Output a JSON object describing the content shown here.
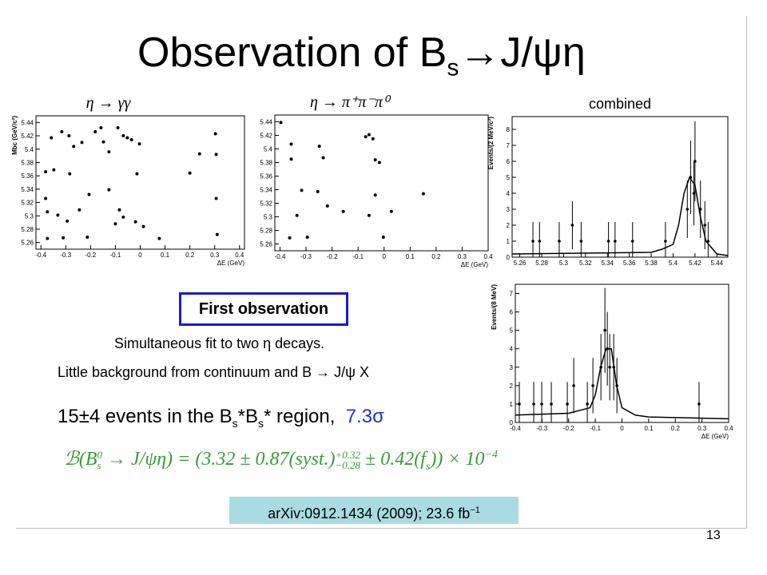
{
  "title": {
    "main": "Observation of B",
    "sub": "s",
    "rest": "→J/ψη"
  },
  "box_text": "First observation",
  "line1": "Simultaneous fit to two η decays.",
  "line2": "Little background from continuum and B → J/ψ X",
  "events": {
    "a": "15±4 events in the B",
    "s1": "s",
    "b": "*B",
    "s2": "s",
    "c": "* region,",
    "sig": "7.3σ"
  },
  "formula": {
    "a": "ℬ(B",
    "sup0": "0",
    "sub0": "s",
    "b": " → J/ψη) = (3.32 ± 0.87(syst.)",
    "sup1": "+0.32",
    "sub1": "−0.28",
    "c": " ± 0.42(f",
    "sub2": "s",
    "d": ")) × 10",
    "sup2": "−4"
  },
  "reference": {
    "text": "arXiv:0912.1434 (2009); 23.6 fb",
    "sup": "−1"
  },
  "page_number": "13",
  "chart_data": [
    {
      "type": "scatter",
      "title": "η → γγ",
      "xlabel": "ΔE (GeV)",
      "ylabel": "Mbc (GeV/c²)",
      "xlim": [
        -0.42,
        0.42
      ],
      "xticks": [
        -0.4,
        -0.3,
        -0.2,
        -0.1,
        0,
        0.1,
        0.2,
        0.3,
        0.4
      ],
      "ylim": [
        5.25,
        5.45
      ],
      "yticks": [
        5.26,
        5.28,
        5.3,
        5.32,
        5.34,
        5.36,
        5.38,
        5.4,
        5.42,
        5.44
      ],
      "x": [
        -0.358,
        -0.316,
        -0.287,
        -0.268,
        -0.235,
        -0.181,
        -0.158,
        -0.148,
        -0.126,
        -0.09,
        -0.068,
        -0.052,
        -0.035,
        -0.003,
        -0.013,
        -0.381,
        -0.348,
        -0.284,
        -0.381,
        -0.374,
        -0.332,
        -0.294,
        -0.245,
        -0.206,
        -0.126,
        -0.084,
        -0.068,
        -0.019,
        -0.31,
        -0.374,
        -0.213,
        -0.1,
        0.013,
        0.077,
        0.2,
        0.239,
        0.303,
        0.306,
        0.306,
        0.31
      ],
      "y": [
        5.417,
        5.426,
        5.42,
        5.404,
        5.41,
        5.426,
        5.432,
        5.411,
        5.396,
        5.432,
        5.42,
        5.417,
        5.414,
        5.408,
        5.363,
        5.366,
        5.369,
        5.363,
        5.326,
        5.306,
        5.301,
        5.292,
        5.309,
        5.332,
        5.339,
        5.309,
        5.298,
        5.291,
        5.267,
        5.266,
        5.268,
        5.288,
        5.284,
        5.266,
        5.364,
        5.393,
        5.423,
        5.392,
        5.326,
        5.272
      ]
    },
    {
      "type": "scatter",
      "title": "η → π⁺π⁻π⁰",
      "xlabel": "ΔE (GeV)",
      "xlim": [
        -0.42,
        0.4
      ],
      "xticks": [
        -0.4,
        -0.3,
        -0.2,
        -0.1,
        0,
        0.1,
        0.2,
        0.3,
        0.4
      ],
      "ylim": [
        5.25,
        5.45
      ],
      "yticks": [
        5.26,
        5.28,
        5.3,
        5.32,
        5.34,
        5.36,
        5.38,
        5.4,
        5.42,
        5.44
      ],
      "x": [
        -0.397,
        -0.357,
        -0.357,
        -0.317,
        -0.335,
        -0.295,
        -0.249,
        -0.234,
        -0.255,
        -0.218,
        -0.157,
        -0.071,
        -0.058,
        -0.043,
        -0.034,
        -0.018,
        -0.034,
        -0.058,
        0.028,
        -0.003,
        0.151,
        -0.363
      ],
      "y": [
        5.439,
        5.407,
        5.385,
        5.339,
        5.302,
        5.27,
        5.404,
        5.387,
        5.337,
        5.316,
        5.308,
        5.418,
        5.421,
        5.415,
        5.384,
        5.38,
        5.332,
        5.302,
        5.308,
        5.27,
        5.334,
        5.269
      ]
    },
    {
      "type": "errorbar",
      "title": "combined",
      "ylabel": "Events/(2 MeV/c²)",
      "xlim": [
        5.253,
        5.45
      ],
      "xticks": [
        5.26,
        5.28,
        5.3,
        5.32,
        5.34,
        5.36,
        5.38,
        5.4,
        5.42,
        5.44
      ],
      "ylim": [
        0,
        8.8
      ],
      "yticks": [
        0,
        1,
        2,
        3,
        4,
        5,
        6,
        7,
        8
      ],
      "x": [
        5.272,
        5.278,
        5.296,
        5.308,
        5.316,
        5.341,
        5.347,
        5.363,
        5.393,
        5.413,
        5.416,
        5.419,
        5.42,
        5.425,
        5.429,
        5.432
      ],
      "values": [
        1,
        1,
        1,
        2,
        1,
        1,
        1,
        1,
        1,
        3,
        5,
        4,
        6,
        3,
        2,
        1
      ],
      "errors": [
        1.2,
        1.2,
        1.2,
        1.5,
        1.2,
        1.2,
        1.2,
        1.2,
        1.2,
        1.8,
        2.3,
        2,
        2.5,
        1.8,
        1.5,
        1.2
      ],
      "fit": {
        "x": [
          5.253,
          5.38,
          5.39,
          5.4,
          5.405,
          5.41,
          5.415,
          5.42,
          5.425,
          5.43,
          5.44,
          5.45
        ],
        "values": [
          0.2,
          0.3,
          0.5,
          0.8,
          2,
          4,
          5,
          4.5,
          2.5,
          1,
          0.2,
          0.1
        ]
      }
    },
    {
      "type": "errorbar",
      "xlabel": "ΔE (GeV)",
      "ylabel": "Events/(8 MeV)",
      "xlim": [
        -0.4,
        0.4
      ],
      "xticks": [
        -0.4,
        -0.3,
        -0.2,
        -0.1,
        0,
        0.1,
        0.2,
        0.3,
        0.4
      ],
      "ylim": [
        0,
        7.5
      ],
      "yticks": [
        0,
        1,
        2,
        3,
        4,
        5,
        6,
        7
      ],
      "x": [
        -0.385,
        -0.331,
        -0.301,
        -0.265,
        -0.205,
        -0.181,
        -0.13,
        -0.109,
        -0.079,
        -0.064,
        -0.055,
        -0.046,
        -0.031,
        -0.019,
        0.289
      ],
      "values": [
        1,
        1,
        1,
        1,
        1,
        2,
        1,
        2,
        3,
        5,
        4,
        3,
        3,
        2,
        1
      ],
      "errors": [
        1.2,
        1.2,
        1.2,
        1.2,
        1.2,
        1.5,
        1.2,
        1.5,
        1.8,
        2.3,
        2,
        1.8,
        1.8,
        1.5,
        1.2
      ],
      "fit": {
        "x": [
          -0.4,
          -0.2,
          -0.12,
          -0.1,
          -0.08,
          -0.06,
          -0.04,
          -0.02,
          0,
          0.05,
          0.1,
          0.4
        ],
        "values": [
          0.4,
          0.5,
          0.8,
          1.5,
          3,
          4,
          4,
          2,
          0.8,
          0.4,
          0.3,
          0.2
        ]
      }
    }
  ]
}
